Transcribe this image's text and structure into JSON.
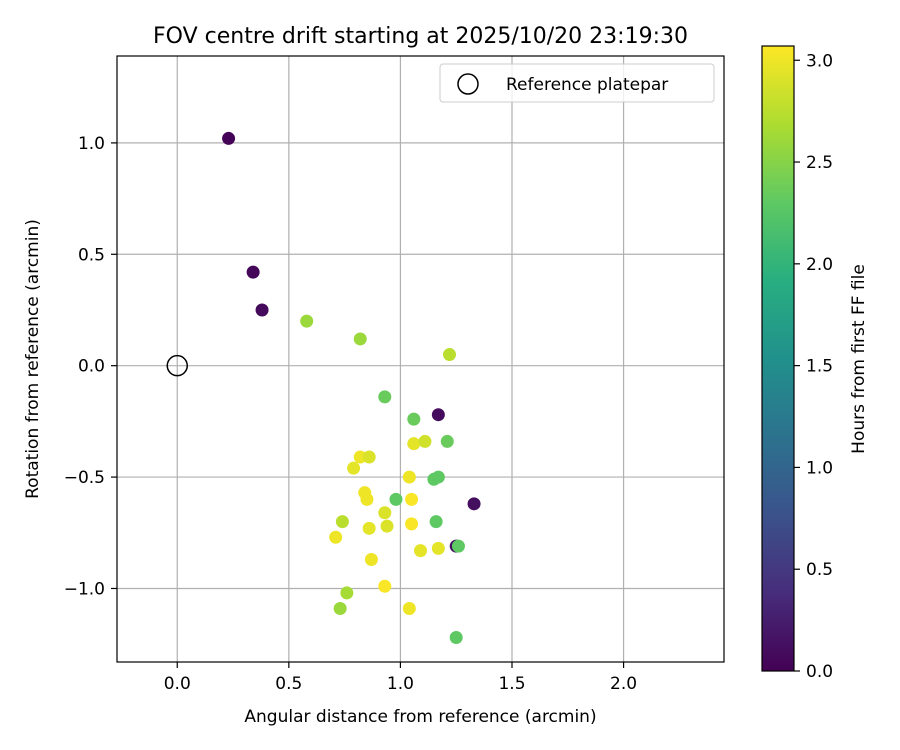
{
  "chart_data": {
    "type": "scatter",
    "title": "FOV centre drift starting at 2025/10/20 23:19:30",
    "xlabel": "Angular distance from reference (arcmin)",
    "ylabel": "Rotation from reference (arcmin)",
    "xlim": [
      -0.27,
      2.45
    ],
    "ylim": [
      -1.33,
      1.39
    ],
    "xticks": [
      {
        "value": 0.0,
        "label": "0.0"
      },
      {
        "value": 0.5,
        "label": "0.5"
      },
      {
        "value": 1.0,
        "label": "1.0"
      },
      {
        "value": 1.5,
        "label": "1.5"
      },
      {
        "value": 2.0,
        "label": "2.0"
      }
    ],
    "yticks": [
      {
        "value": -1.0,
        "label": "−1.0"
      },
      {
        "value": -0.5,
        "label": "−0.5"
      },
      {
        "value": 0.0,
        "label": "0.0"
      },
      {
        "value": 0.5,
        "label": "0.5"
      },
      {
        "value": 1.0,
        "label": "1.0"
      }
    ],
    "grid": true,
    "legend": {
      "position": "top-right",
      "entries": [
        {
          "label": "Reference platepar",
          "marker": "open-circle"
        }
      ]
    },
    "reference_point": {
      "x": 0.0,
      "y": 0.0
    },
    "colorbar": {
      "label": "Hours from first FF file",
      "min": 0.0,
      "max": 3.07,
      "colormap": "viridis",
      "ticks": [
        {
          "value": 0.0,
          "label": "0.0"
        },
        {
          "value": 0.5,
          "label": "0.5"
        },
        {
          "value": 1.0,
          "label": "1.0"
        },
        {
          "value": 1.5,
          "label": "1.5"
        },
        {
          "value": 2.0,
          "label": "2.0"
        },
        {
          "value": 2.5,
          "label": "2.5"
        },
        {
          "value": 3.0,
          "label": "3.0"
        }
      ]
    },
    "points": [
      {
        "x": 0.23,
        "y": 1.02,
        "hours": 0.02
      },
      {
        "x": 0.34,
        "y": 0.42,
        "hours": 0.05
      },
      {
        "x": 0.38,
        "y": 0.25,
        "hours": 0.08
      },
      {
        "x": 1.17,
        "y": -0.22,
        "hours": 0.1
      },
      {
        "x": 1.33,
        "y": -0.62,
        "hours": 0.12
      },
      {
        "x": 1.25,
        "y": -0.81,
        "hours": 0.15
      },
      {
        "x": 0.58,
        "y": 0.2,
        "hours": 2.6
      },
      {
        "x": 0.82,
        "y": 0.12,
        "hours": 2.6
      },
      {
        "x": 1.22,
        "y": 0.05,
        "hours": 2.75
      },
      {
        "x": 0.93,
        "y": -0.14,
        "hours": 2.35
      },
      {
        "x": 1.06,
        "y": -0.24,
        "hours": 2.35
      },
      {
        "x": 1.21,
        "y": -0.34,
        "hours": 2.35
      },
      {
        "x": 1.06,
        "y": -0.35,
        "hours": 2.95
      },
      {
        "x": 1.11,
        "y": -0.34,
        "hours": 2.85
      },
      {
        "x": 1.15,
        "y": -0.51,
        "hours": 2.3
      },
      {
        "x": 1.17,
        "y": -0.5,
        "hours": 2.3
      },
      {
        "x": 0.98,
        "y": -0.6,
        "hours": 2.3
      },
      {
        "x": 1.16,
        "y": -0.7,
        "hours": 2.3
      },
      {
        "x": 1.26,
        "y": -0.81,
        "hours": 2.3
      },
      {
        "x": 1.25,
        "y": -1.22,
        "hours": 2.3
      },
      {
        "x": 0.82,
        "y": -0.41,
        "hours": 3.0
      },
      {
        "x": 0.86,
        "y": -0.41,
        "hours": 2.9
      },
      {
        "x": 0.79,
        "y": -0.46,
        "hours": 2.95
      },
      {
        "x": 1.04,
        "y": -0.5,
        "hours": 3.0
      },
      {
        "x": 0.84,
        "y": -0.57,
        "hours": 3.0
      },
      {
        "x": 0.85,
        "y": -0.6,
        "hours": 3.0
      },
      {
        "x": 1.05,
        "y": -0.6,
        "hours": 3.05
      },
      {
        "x": 0.93,
        "y": -0.66,
        "hours": 2.9
      },
      {
        "x": 0.74,
        "y": -0.7,
        "hours": 2.75
      },
      {
        "x": 0.94,
        "y": -0.72,
        "hours": 2.9
      },
      {
        "x": 1.05,
        "y": -0.71,
        "hours": 3.05
      },
      {
        "x": 0.86,
        "y": -0.73,
        "hours": 2.95
      },
      {
        "x": 0.71,
        "y": -0.77,
        "hours": 3.0
      },
      {
        "x": 1.09,
        "y": -0.83,
        "hours": 2.95
      },
      {
        "x": 1.17,
        "y": -0.82,
        "hours": 2.95
      },
      {
        "x": 0.87,
        "y": -0.87,
        "hours": 3.0
      },
      {
        "x": 0.93,
        "y": -0.99,
        "hours": 3.05
      },
      {
        "x": 0.76,
        "y": -1.02,
        "hours": 2.65
      },
      {
        "x": 0.73,
        "y": -1.09,
        "hours": 2.6
      },
      {
        "x": 1.04,
        "y": -1.09,
        "hours": 3.0
      }
    ]
  }
}
